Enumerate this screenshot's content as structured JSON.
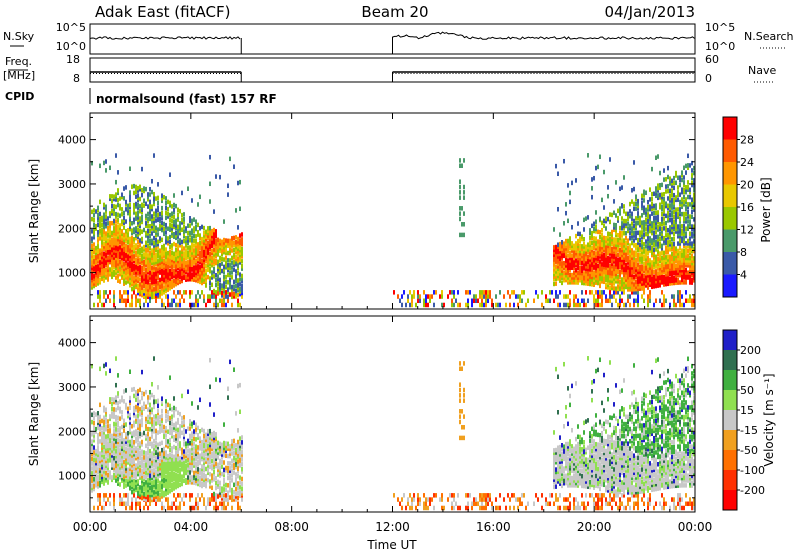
{
  "header": {
    "station": "Adak East (fitACF)",
    "beam": "Beam 20",
    "date": "04/Jan/2013"
  },
  "strip_labels": {
    "nsky": "N.Sky",
    "freq_line1": "Freq.",
    "freq_line2": "[MHz]",
    "cpid": "CPID",
    "nsearch": "N.Search",
    "nave": "Nave",
    "cpid_text": "normalsound (fast) 157 RF"
  },
  "noise_axis": {
    "left_ticks": [
      "10^5",
      "10^0"
    ],
    "right_ticks": [
      "10^5",
      "10^0"
    ]
  },
  "freq_axis": {
    "left_ticks": [
      "18",
      "8"
    ],
    "right_ticks": [
      "60",
      "0"
    ]
  },
  "x_axis": {
    "label": "Time UT",
    "ticks": [
      "00:00",
      "04:00",
      "08:00",
      "12:00",
      "16:00",
      "20:00",
      "00:00"
    ],
    "range_hours": [
      0,
      24
    ]
  },
  "y_axis": {
    "label": "Slant Range [km]",
    "ticks": [
      "1000",
      "2000",
      "3000",
      "4000"
    ],
    "range_km": [
      180,
      4600
    ]
  },
  "power_scale": {
    "title": "Power [dB]",
    "ticks": [
      "28",
      "24",
      "20",
      "16",
      "12",
      "8",
      "4"
    ],
    "colors": [
      "#ff0000",
      "#ff5a00",
      "#ff9600",
      "#e8c800",
      "#9ac800",
      "#4a9a6a",
      "#3a5aa8",
      "#1a1aff"
    ]
  },
  "velocity_scale": {
    "title": "Velocity [m s⁻¹]",
    "ticks": [
      "200",
      "100",
      "50",
      "15",
      "-15",
      "-50",
      "-100",
      "-200"
    ],
    "colors": [
      "#2020c8",
      "#307050",
      "#40b040",
      "#90e050",
      "#c8c8c8",
      "#f0a020",
      "#ff7000",
      "#ff3000",
      "#ff0000"
    ]
  },
  "chart_data": {
    "type": "heatmap",
    "operating_intervals_hours": [
      [
        0,
        6
      ],
      [
        12,
        24
      ]
    ],
    "panels": [
      {
        "name": "Power",
        "quantity": "power"
      },
      {
        "name": "Velocity",
        "quantity": "velocity"
      }
    ]
  }
}
